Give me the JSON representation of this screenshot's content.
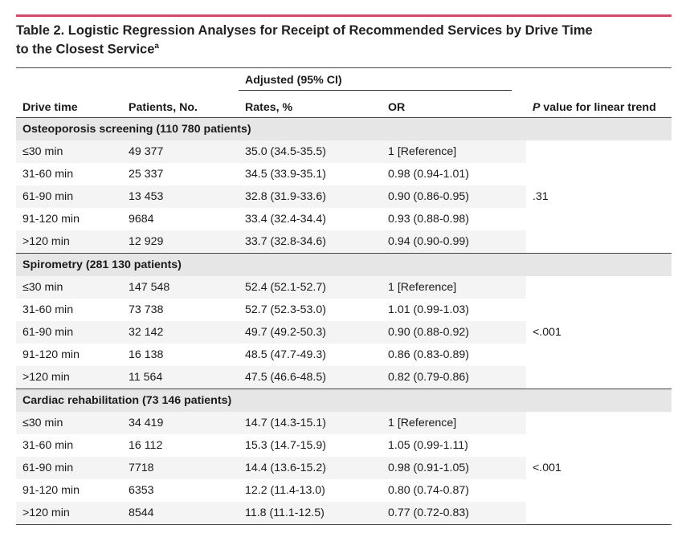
{
  "title_line1": "Table 2. Logistic Regression Analyses for Receipt of Recommended Services by Drive Time",
  "title_line2": "to the Closest Service",
  "title_footnote": "a",
  "header": {
    "group": "Adjusted (95% CI)",
    "drive_time": "Drive time",
    "patients": "Patients, No.",
    "rates": "Rates, %",
    "or": "OR",
    "pvalue_italic": "P",
    "pvalue_rest": " value for linear trend"
  },
  "sections": [
    {
      "label": "Osteoporosis screening (110 780 patients)",
      "pvalue": ".31",
      "rows": [
        {
          "drive": "≤30 min",
          "patients": "49 377",
          "rate": "35.0 (34.5-35.5)",
          "or": "1 [Reference]"
        },
        {
          "drive": "31-60 min",
          "patients": "25 337",
          "rate": "34.5 (33.9-35.1)",
          "or": "0.98 (0.94-1.01)"
        },
        {
          "drive": "61-90 min",
          "patients": "13 453",
          "rate": "32.8 (31.9-33.6)",
          "or": "0.90 (0.86-0.95)"
        },
        {
          "drive": "91-120 min",
          "patients": "9684",
          "rate": "33.4 (32.4-34.4)",
          "or": "0.93 (0.88-0.98)"
        },
        {
          "drive": ">120 min",
          "patients": "12 929",
          "rate": "33.7 (32.8-34.6)",
          "or": "0.94 (0.90-0.99)"
        }
      ]
    },
    {
      "label": "Spirometry (281 130 patients)",
      "pvalue": "<.001",
      "rows": [
        {
          "drive": "≤30 min",
          "patients": "147 548",
          "rate": "52.4 (52.1-52.7)",
          "or": "1 [Reference]"
        },
        {
          "drive": "31-60 min",
          "patients": "73 738",
          "rate": "52.7 (52.3-53.0)",
          "or": "1.01 (0.99-1.03)"
        },
        {
          "drive": "61-90 min",
          "patients": "32 142",
          "rate": "49.7 (49.2-50.3)",
          "or": "0.90 (0.88-0.92)"
        },
        {
          "drive": "91-120 min",
          "patients": "16 138",
          "rate": "48.5 (47.7-49.3)",
          "or": "0.86 (0.83-0.89)"
        },
        {
          "drive": ">120 min",
          "patients": "11 564",
          "rate": "47.5 (46.6-48.5)",
          "or": "0.82 (0.79-0.86)"
        }
      ]
    },
    {
      "label": "Cardiac rehabilitation (73 146 patients)",
      "pvalue": "<.001",
      "rows": [
        {
          "drive": "≤30 min",
          "patients": "34 419",
          "rate": "14.7 (14.3-15.1)",
          "or": "1 [Reference]"
        },
        {
          "drive": "31-60 min",
          "patients": "16 112",
          "rate": "15.3 (14.7-15.9)",
          "or": "1.05 (0.99-1.11)"
        },
        {
          "drive": "61-90 min",
          "patients": "7718",
          "rate": "14.4 (13.6-15.2)",
          "or": "0.98 (0.91-1.05)"
        },
        {
          "drive": "91-120 min",
          "patients": "6353",
          "rate": "12.2 (11.4-13.0)",
          "or": "0.80 (0.74-0.87)"
        },
        {
          "drive": ">120 min",
          "patients": "8544",
          "rate": "11.8 (11.1-12.5)",
          "or": "0.77 (0.72-0.83)"
        }
      ]
    }
  ],
  "colors": {
    "accent_rule": "#d44a6b",
    "section_bg": "#e6e6e6",
    "row_alt_bg": "#f4f4f4"
  }
}
